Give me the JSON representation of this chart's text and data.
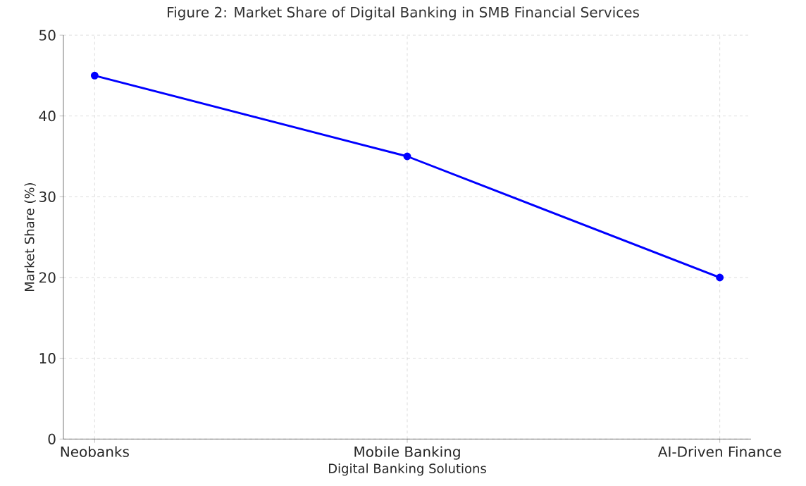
{
  "chart_data": {
    "type": "line",
    "title": "Figure 2: Market Share of Digital Banking in SMB Financial Services",
    "xlabel": "Digital Banking Solutions",
    "ylabel": "Market Share (%)",
    "categories": [
      "Neobanks",
      "Mobile Banking",
      "AI-Driven Finance"
    ],
    "series": [
      {
        "color": "#0000ff",
        "values": [
          45,
          35,
          20
        ]
      }
    ],
    "ylim": [
      0,
      50
    ],
    "yticks": [
      0,
      10,
      20,
      30,
      40,
      50
    ],
    "grid": true,
    "marker": "circle",
    "line_style": "solid"
  }
}
